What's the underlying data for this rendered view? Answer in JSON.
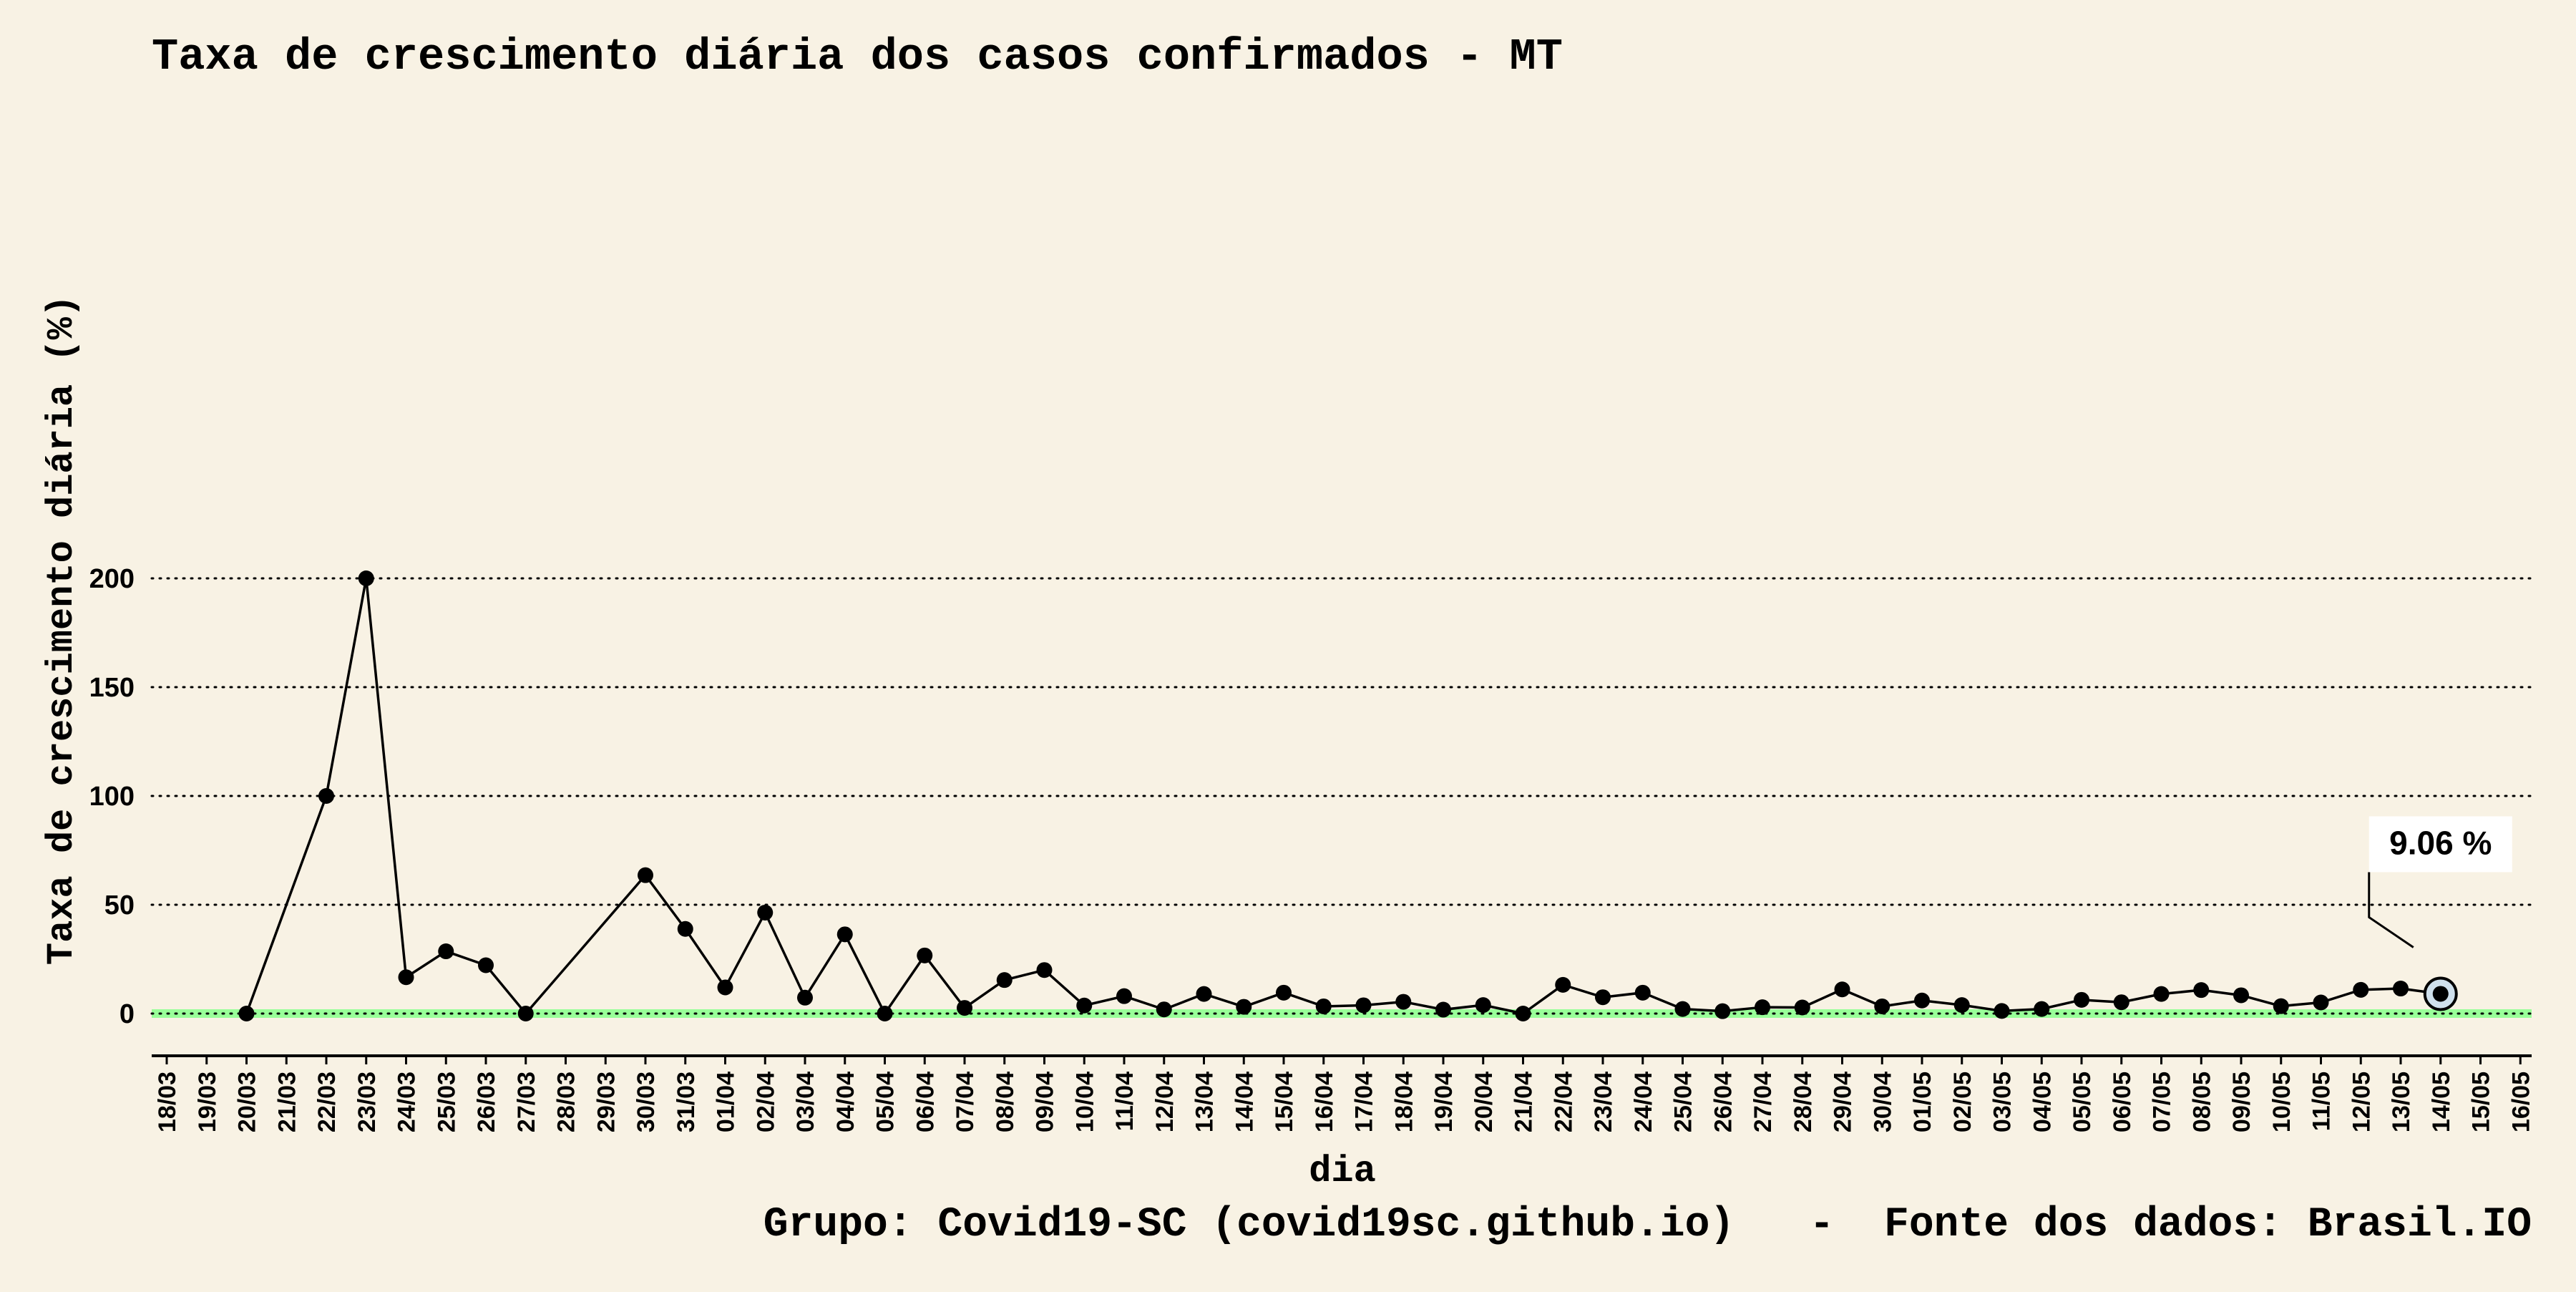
{
  "chart_data": {
    "type": "line",
    "title": "Taxa de crescimento diária dos casos confirmados - MT",
    "xlabel": "dia",
    "ylabel": "Taxa de crescimento diária (%)",
    "caption": "Grupo: Covid19-SC (covid19sc.github.io)   -  Fonte dos dados: Brasil.IO",
    "ylim": [
      -10,
      210
    ],
    "yticks": [
      0,
      50,
      100,
      150,
      200
    ],
    "grid": "horizontal-dotted",
    "reference_line": {
      "y": 0,
      "color": "#99ff99"
    },
    "categories": [
      "18/03",
      "19/03",
      "20/03",
      "21/03",
      "22/03",
      "23/03",
      "24/03",
      "25/03",
      "26/03",
      "27/03",
      "28/03",
      "29/03",
      "30/03",
      "31/03",
      "01/04",
      "02/04",
      "03/04",
      "04/04",
      "05/04",
      "06/04",
      "07/04",
      "08/04",
      "09/04",
      "10/04",
      "11/04",
      "12/04",
      "13/04",
      "14/04",
      "15/04",
      "16/04",
      "17/04",
      "18/04",
      "19/04",
      "20/04",
      "21/04",
      "22/04",
      "23/04",
      "24/04",
      "25/04",
      "26/04",
      "27/04",
      "28/04",
      "29/04",
      "30/04",
      "01/05",
      "02/05",
      "03/05",
      "04/05",
      "05/05",
      "06/05",
      "07/05",
      "08/05",
      "09/05",
      "10/05",
      "11/05",
      "12/05",
      "13/05",
      "14/05",
      "15/05",
      "16/05"
    ],
    "series": [
      {
        "values": [
          null,
          null,
          0,
          null,
          100,
          200,
          16.7,
          28.6,
          22.2,
          0,
          null,
          null,
          63.6,
          38.9,
          12,
          46.4,
          7.3,
          36.4,
          0,
          26.7,
          2.6,
          15.4,
          20,
          3.7,
          8,
          1.9,
          9,
          3.1,
          9.6,
          3.3,
          3.8,
          5.4,
          1.8,
          3.9,
          0,
          13.2,
          7.5,
          9.6,
          2.1,
          1.1,
          2.9,
          2.8,
          11.1,
          3.3,
          6,
          3.9,
          1.2,
          2.1,
          6.3,
          5.2,
          9,
          10.8,
          8.4,
          3.4,
          5.1,
          10.9,
          11.5,
          9.06,
          null,
          null
        ],
        "color": "#000000"
      }
    ],
    "annotation": {
      "category": "14/05",
      "value": 9.06,
      "label": "9.06 %"
    }
  }
}
